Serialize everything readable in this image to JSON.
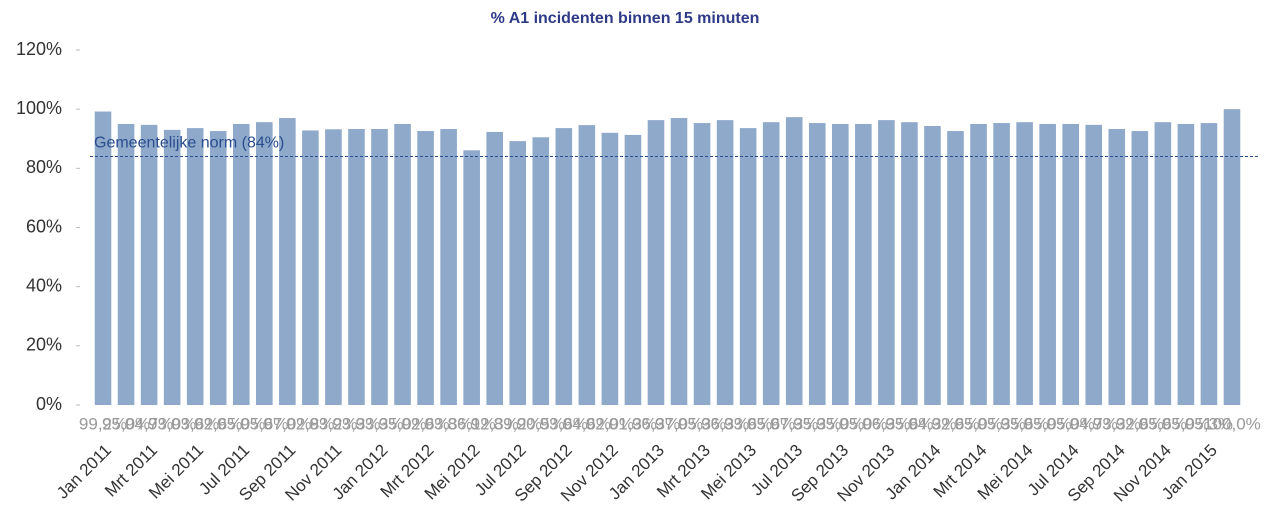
{
  "chart_data": {
    "type": "bar",
    "title": "% A1 incidenten binnen 15 minuten",
    "categories": [
      "Jan 2011",
      null,
      "Mrt 2011",
      null,
      "Mei 2011",
      null,
      "Jul 2011",
      null,
      "Sep 2011",
      null,
      "Nov 2011",
      null,
      "Jan 2012",
      null,
      "Mrt 2012",
      null,
      "Mei 2012",
      null,
      "Jul 2012",
      null,
      "Sep 2012",
      null,
      "Nov 2012",
      null,
      "Jan 2013",
      null,
      "Mrt 2013",
      null,
      "Mei 2013",
      null,
      "Jul 2013",
      null,
      "Sep 2013",
      null,
      "Nov 2013",
      null,
      "Jan 2014",
      null,
      "Mrt 2014",
      null,
      "Mei 2014",
      null,
      "Jul 2014",
      null,
      "Sep 2014",
      null,
      "Nov 2014",
      null,
      "Jan 2015",
      null
    ],
    "values": [
      99.2,
      95.0,
      94.7,
      93.0,
      93.6,
      92.6,
      95.0,
      95.6,
      97.0,
      92.8,
      93.2,
      93.3,
      93.3,
      95.0,
      92.6,
      93.3,
      86.1,
      92.3,
      89.2,
      90.5,
      93.6,
      94.6,
      92.0,
      91.3,
      96.3,
      97.0,
      95.3,
      96.3,
      93.6,
      95.6,
      97.3,
      95.3,
      95.0,
      95.0,
      96.3,
      95.6,
      94.3,
      92.6,
      95.0,
      95.3,
      95.6,
      95.0,
      95.0,
      94.7,
      93.3,
      92.6,
      95.6,
      95.0,
      95.3,
      100.0
    ],
    "value_labels": [
      "99,2%",
      "95,0%",
      "94,7%",
      "93,0%",
      "93,6%",
      "92,6%",
      "95,0%",
      "95,6%",
      "97,0%",
      "92,8%",
      "93,2%",
      "93,3%",
      "93,3%",
      "95,0%",
      "92,6%",
      "93,3%",
      "86,1%",
      "92,3%",
      "89,2%",
      "90,5%",
      "93,6%",
      "94,6%",
      "92,0%",
      "91,3%",
      "96,3%",
      "97,0%",
      "95,3%",
      "96,3%",
      "93,6%",
      "95,6%",
      "97,3%",
      "95,3%",
      "95,0%",
      "95,0%",
      "96,3%",
      "95,6%",
      "94,3%",
      "92,6%",
      "95,0%",
      "95,3%",
      "95,6%",
      "95,0%",
      "95,0%",
      "94,7%",
      "93,3%",
      "92,6%",
      "95,6%",
      "95,0%",
      "95,3%",
      "100,0%"
    ],
    "color": "#8fa9cb",
    "ylim": [
      0,
      120
    ],
    "yticks": [
      {
        "value": 0,
        "label": "0%"
      },
      {
        "value": 20,
        "label": "20%"
      },
      {
        "value": 40,
        "label": "40%"
      },
      {
        "value": 60,
        "label": "60%"
      },
      {
        "value": 80,
        "label": "80%"
      },
      {
        "value": 100,
        "label": "100%"
      },
      {
        "value": 120,
        "label": "120%"
      }
    ],
    "reference_line": {
      "value": 84,
      "label": "Gemeentelijke norm (84%)",
      "color": "#2a4d8f"
    }
  }
}
